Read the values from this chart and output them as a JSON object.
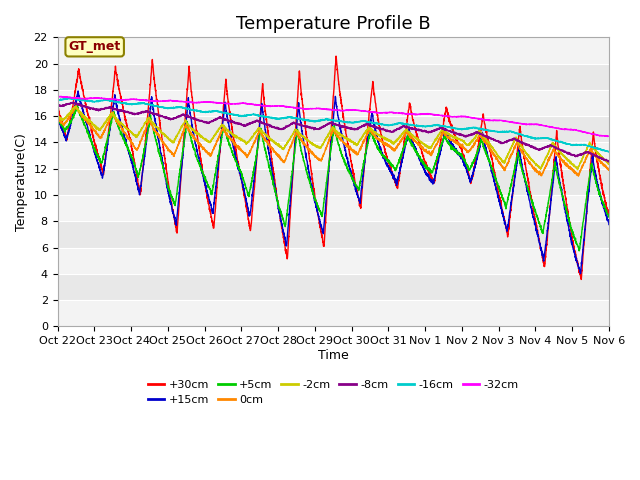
{
  "title": "Temperature Profile B",
  "xlabel": "Time",
  "ylabel": "Temperature(C)",
  "ylim": [
    0,
    22
  ],
  "background_color": "#ffffff",
  "plot_bg_color": "#e8e8e8",
  "grid_color": "#ffffff",
  "annotation_text": "GT_met",
  "annotation_bg": "#ffffc0",
  "annotation_border": "#8B8000",
  "tick_labels": [
    "Oct 22",
    "Oct 23",
    "Oct 24",
    "Oct 25",
    "Oct 26",
    "Oct 27",
    "Oct 28",
    "Oct 29",
    "Oct 30",
    "Oct 31",
    "Nov 1",
    "Nov 2",
    "Nov 3",
    "Nov 4",
    "Nov 5",
    "Nov 6"
  ],
  "legend": [
    {
      "label": "+30cm",
      "color": "#ff0000"
    },
    {
      "label": "+15cm",
      "color": "#0000cc"
    },
    {
      "label": "+5cm",
      "color": "#00cc00"
    },
    {
      "label": "0cm",
      "color": "#ff8800"
    },
    {
      "label": "-2cm",
      "color": "#cccc00"
    },
    {
      "label": "-8cm",
      "color": "#880088"
    },
    {
      "label": "-16cm",
      "color": "#00cccc"
    },
    {
      "label": "-32cm",
      "color": "#ff00ff"
    }
  ],
  "title_fontsize": 13,
  "axis_fontsize": 9,
  "tick_fontsize": 8
}
